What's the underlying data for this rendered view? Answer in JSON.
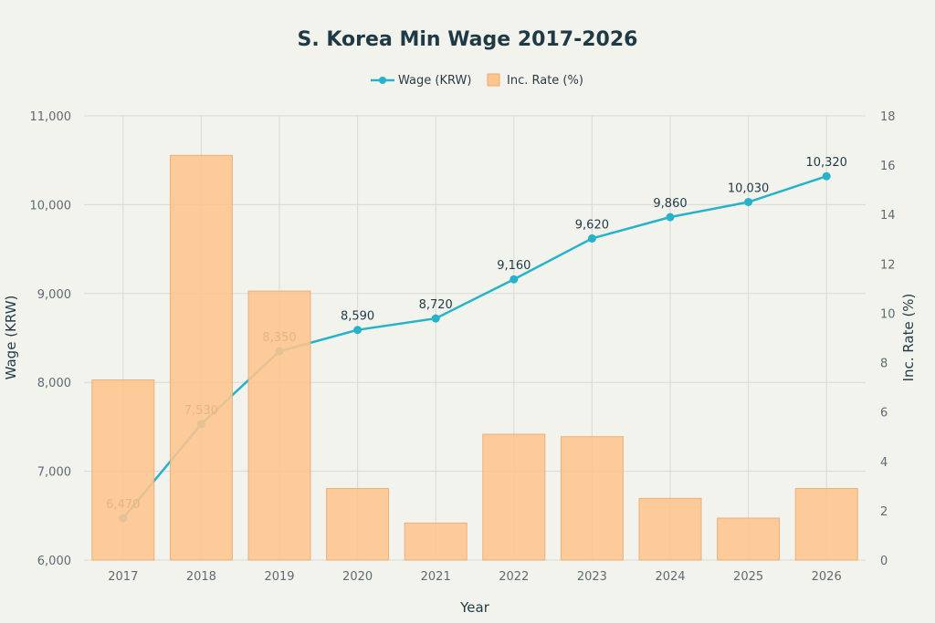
{
  "colors": {
    "background": "#f3f3ee",
    "line": "#26b3c9",
    "bar_fill": "#ffc58e",
    "bar_stroke": "#e8a96b",
    "grid": "#d7d9d4",
    "title": "#1f3a45",
    "tick": "#5f6b72"
  },
  "chart_data": {
    "type": "bar",
    "title": "S. Korea Min Wage 2017-2026",
    "xlabel": "Year",
    "ylabel": "Wage (KRW)",
    "y2label": "Inc. Rate (%)",
    "categories": [
      "2017",
      "2018",
      "2019",
      "2020",
      "2021",
      "2022",
      "2023",
      "2024",
      "2025",
      "2026"
    ],
    "ylim": [
      6000,
      11000
    ],
    "y2lim": [
      0,
      18
    ],
    "yticks": [
      6000,
      7000,
      8000,
      9000,
      10000,
      11000
    ],
    "ytick_labels": [
      "6,000",
      "7,000",
      "8,000",
      "9,000",
      "10,000",
      "11,000"
    ],
    "y2ticks": [
      0,
      2,
      4,
      6,
      8,
      10,
      12,
      14,
      16,
      18
    ],
    "grid": true,
    "legend_position": "top-center",
    "series": [
      {
        "name": "Wage (KRW)",
        "type": "line",
        "axis": "left",
        "values": [
          6470,
          7530,
          8350,
          8590,
          8720,
          9160,
          9620,
          9860,
          10030,
          10320
        ],
        "labels": [
          "6,470",
          "7,530",
          "8,350",
          "8,590",
          "8,720",
          "9,160",
          "9,620",
          "9,860",
          "10,030",
          "10,320"
        ]
      },
      {
        "name": "Inc. Rate (%)",
        "type": "bar",
        "axis": "right",
        "values": [
          7.3,
          16.4,
          10.9,
          2.9,
          1.5,
          5.1,
          5.0,
          2.5,
          1.7,
          2.9
        ]
      }
    ]
  }
}
